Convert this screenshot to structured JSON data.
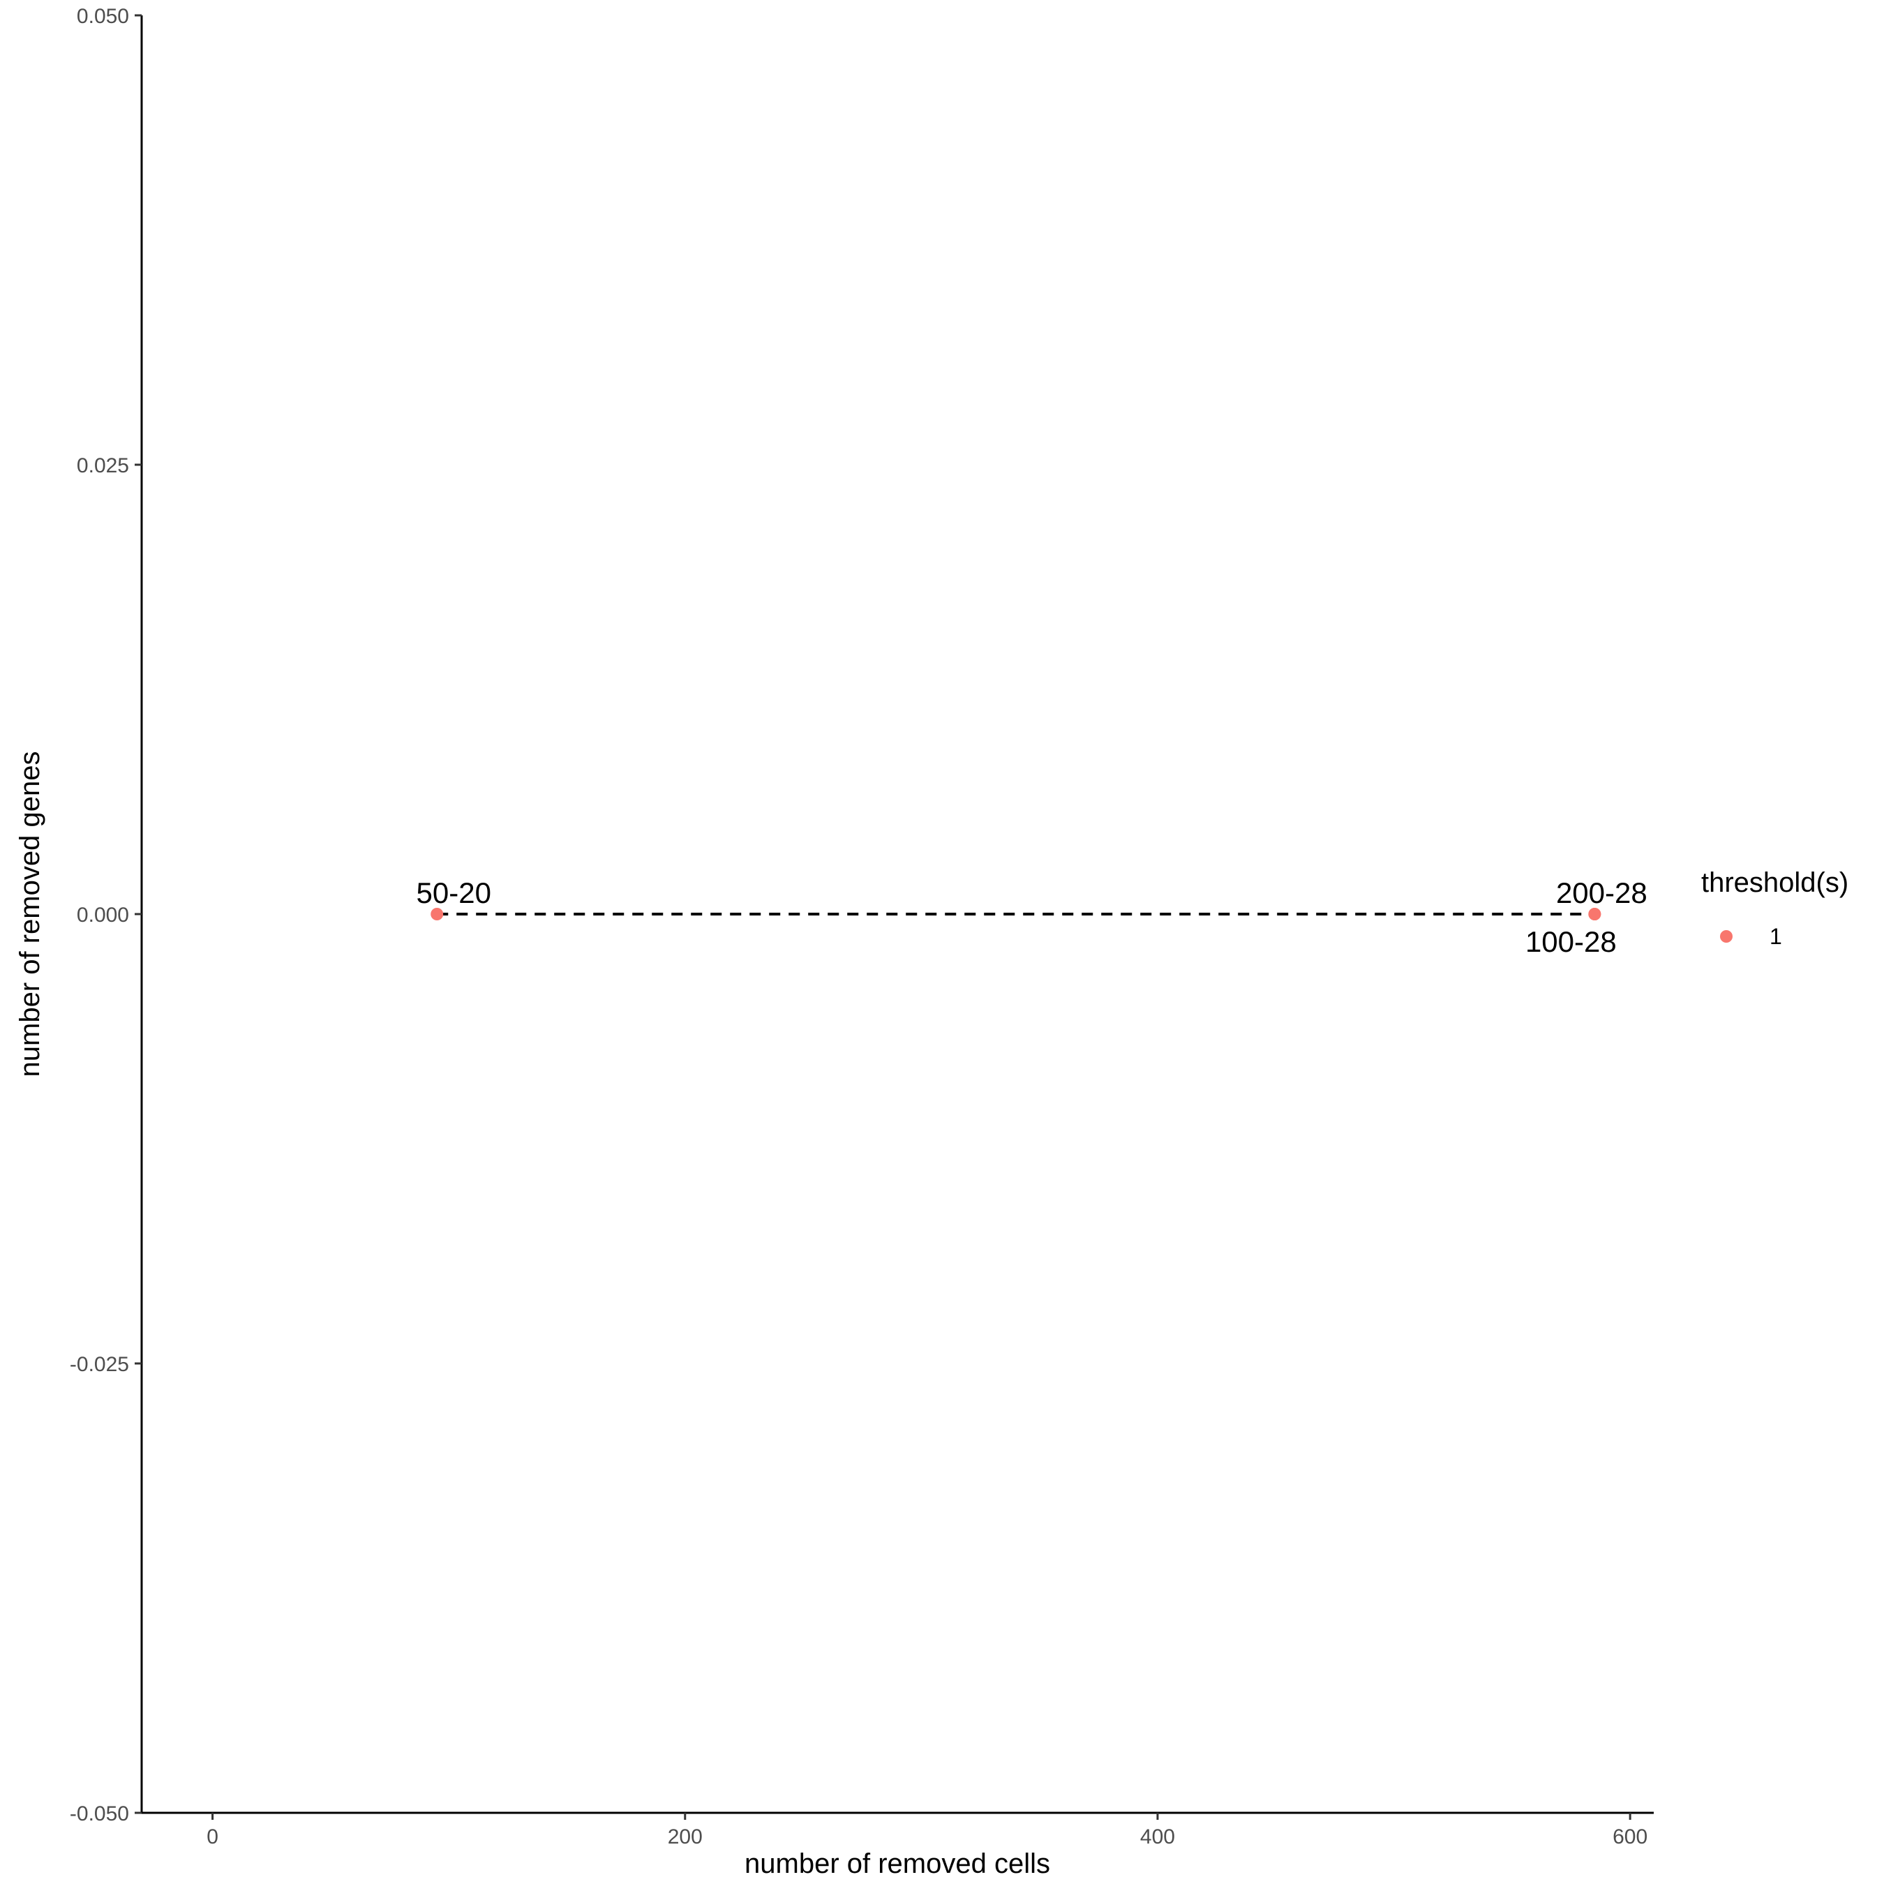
{
  "chart_data": {
    "type": "scatter",
    "xlabel": "number of removed cells",
    "ylabel": "number of removed genes",
    "xlim": [
      -30,
      610
    ],
    "ylim": [
      -0.05,
      0.05
    ],
    "x_ticks": [
      0,
      200,
      400,
      600
    ],
    "x_tick_labels": [
      "0",
      "200",
      "400",
      "600"
    ],
    "y_ticks": [
      -0.05,
      -0.025,
      0,
      0.025,
      0.05
    ],
    "y_tick_labels": [
      "-0.050",
      "-0.025",
      "0.000",
      "0.025",
      "0.050"
    ],
    "grid": false,
    "legend": {
      "title": "threshold(s)",
      "position": "right",
      "entries": [
        {
          "label": "1",
          "color": "#F8766D"
        }
      ]
    },
    "series": [
      {
        "name": "1",
        "color": "#F8766D",
        "points": [
          {
            "x": 95,
            "y": 0,
            "label": "50-20",
            "label_pos": "above"
          },
          {
            "x": 585,
            "y": 0,
            "label": "200-28",
            "label_pos": "above-right"
          },
          {
            "x": 585,
            "y": 0,
            "label": "100-28",
            "label_pos": "below-left"
          }
        ]
      }
    ],
    "line": {
      "style": "dashed",
      "color": "#000000",
      "x": [
        95,
        585
      ],
      "y": [
        0,
        0
      ]
    }
  }
}
